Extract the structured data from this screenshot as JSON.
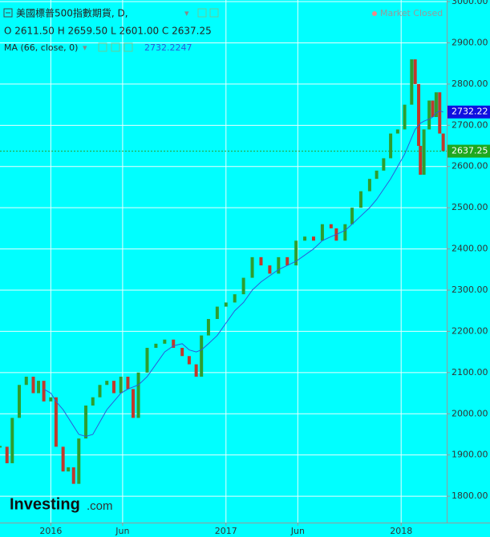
{
  "chart_data": {
    "type": "candlestick",
    "title": "美國標普500指數期貨, D,",
    "ohlc_text": "O 2611.50 H 2659.50 L 2601.00 C 2637.25",
    "market_status": "Market Closed",
    "logo": "Investing",
    "logo_suffix": ".com",
    "xlim": [
      2015.71,
      2018.26
    ],
    "ylim": [
      1736,
      3004
    ],
    "grid": true,
    "xticks": [
      {
        "value": 2016,
        "label": "2016"
      },
      {
        "value": 2016.41,
        "label": "Jun"
      },
      {
        "value": 2017,
        "label": "2017"
      },
      {
        "value": 2017.41,
        "label": "Jun"
      },
      {
        "value": 2018,
        "label": "2018"
      }
    ],
    "yticks": [
      {
        "value": 1800,
        "label": "1800.00"
      },
      {
        "value": 1900,
        "label": "1900.00"
      },
      {
        "value": 2000,
        "label": "2000.00"
      },
      {
        "value": 2100,
        "label": "2100.00"
      },
      {
        "value": 2200,
        "label": "2200.00"
      },
      {
        "value": 2300,
        "label": "2300.00"
      },
      {
        "value": 2400,
        "label": "2400.00"
      },
      {
        "value": 2500,
        "label": "2500.00"
      },
      {
        "value": 2600,
        "label": "2600.00"
      },
      {
        "value": 2700,
        "label": "2700.00"
      },
      {
        "value": 2800,
        "label": "2800.00"
      },
      {
        "value": 2900,
        "label": "2900.00"
      },
      {
        "value": 3000,
        "label": "3000.00"
      }
    ],
    "x": [
      2015.71,
      2015.75,
      2015.78,
      2015.82,
      2015.86,
      2015.9,
      2015.93,
      2015.96,
      2016.0,
      2016.03,
      2016.07,
      2016.1,
      2016.13,
      2016.16,
      2016.2,
      2016.24,
      2016.28,
      2016.32,
      2016.36,
      2016.4,
      2016.44,
      2016.47,
      2016.5,
      2016.55,
      2016.6,
      2016.65,
      2016.7,
      2016.75,
      2016.79,
      2016.83,
      2016.86,
      2016.9,
      2016.95,
      2017.0,
      2017.05,
      2017.1,
      2017.15,
      2017.2,
      2017.25,
      2017.3,
      2017.35,
      2017.4,
      2017.45,
      2017.5,
      2017.55,
      2017.6,
      2017.63,
      2017.68,
      2017.72,
      2017.77,
      2017.82,
      2017.86,
      2017.9,
      2017.94,
      2017.98,
      2018.02,
      2018.06,
      2018.08,
      2018.1,
      2018.11,
      2018.13,
      2018.16,
      2018.18,
      2018.2,
      2018.22,
      2018.24
    ],
    "series": [
      {
        "up_color": "#2e9e2e",
        "down_color": "#c0392b",
        "values": [
          1920,
          1880,
          1990,
          2070,
          2090,
          2050,
          2080,
          2030,
          2040,
          1920,
          1860,
          1870,
          1830,
          1940,
          2020,
          2040,
          2070,
          2080,
          2050,
          2090,
          2060,
          1990,
          2100,
          2160,
          2170,
          2180,
          2160,
          2140,
          2120,
          2090,
          2190,
          2230,
          2260,
          2270,
          2290,
          2330,
          2380,
          2360,
          2340,
          2380,
          2360,
          2420,
          2430,
          2420,
          2460,
          2450,
          2420,
          2460,
          2500,
          2540,
          2570,
          2590,
          2620,
          2680,
          2690,
          2750,
          2860,
          2800,
          2650,
          2580,
          2690,
          2760,
          2720,
          2780,
          2680,
          2637.25
        ]
      },
      {
        "name": "MA (66, close, 0)",
        "color": "#2d5bd8",
        "badge": "2732.22",
        "values": [
          null,
          null,
          null,
          null,
          null,
          null,
          null,
          2060,
          2050,
          2030,
          2010,
          1990,
          1970,
          1950,
          1945,
          1950,
          1980,
          2010,
          2030,
          2050,
          2060,
          2065,
          2070,
          2090,
          2120,
          2150,
          2165,
          2170,
          2155,
          2150,
          2155,
          2170,
          2190,
          2220,
          2250,
          2270,
          2300,
          2320,
          2335,
          2350,
          2360,
          2370,
          2385,
          2400,
          2420,
          2430,
          2435,
          2445,
          2460,
          2480,
          2500,
          2520,
          2545,
          2570,
          2600,
          2630,
          2670,
          2690,
          2700,
          2705,
          2710,
          2715,
          2720,
          2730,
          2735,
          2732.2247
        ]
      }
    ]
  }
}
